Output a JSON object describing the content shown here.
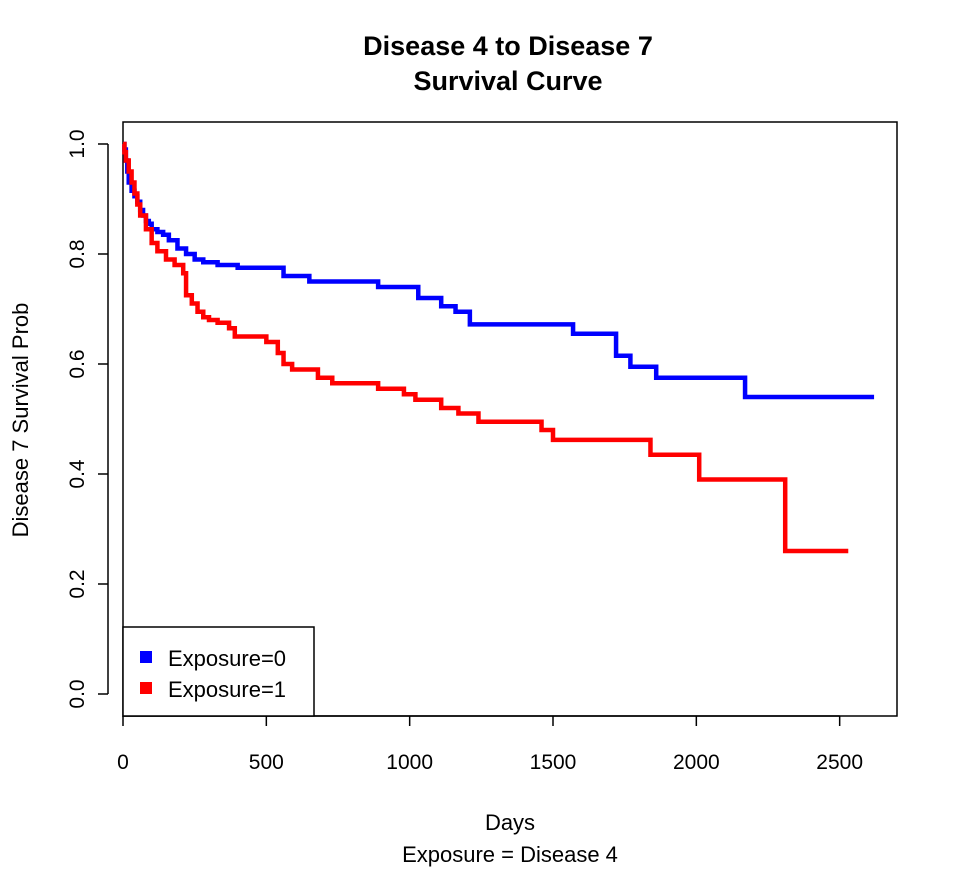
{
  "chart_data": {
    "type": "line",
    "step": true,
    "title": [
      "Disease 4 to Disease 7",
      "Survival Curve"
    ],
    "xlabel": "Days",
    "subtitle": "Exposure = Disease 4",
    "ylabel": "Disease 7 Survival Prob",
    "xlim": [
      0,
      2700
    ],
    "ylim": [
      -0.04,
      1.04
    ],
    "x_ticks": [
      0,
      500,
      1000,
      1500,
      2000,
      2500
    ],
    "y_ticks": [
      0.0,
      0.2,
      0.4,
      0.6,
      0.8,
      1.0
    ],
    "x_tick_labels": [
      "0",
      "500",
      "1000",
      "1500",
      "2000",
      "2500"
    ],
    "y_tick_labels": [
      "0.0",
      "0.2",
      "0.4",
      "0.6",
      "0.8",
      "1.0"
    ],
    "grid": false,
    "legend_position": "bottom-left",
    "series": [
      {
        "name": "Exposure=0",
        "color": "#0000ff",
        "x": [
          0,
          5,
          10,
          15,
          20,
          30,
          40,
          50,
          60,
          70,
          80,
          90,
          100,
          120,
          140,
          160,
          190,
          220,
          250,
          280,
          330,
          400,
          560,
          650,
          890,
          1030,
          1110,
          1160,
          1210,
          1570,
          1720,
          1770,
          1860,
          2170,
          2620
        ],
        "y": [
          1.0,
          0.99,
          0.97,
          0.95,
          0.93,
          0.915,
          0.905,
          0.895,
          0.88,
          0.87,
          0.86,
          0.855,
          0.845,
          0.84,
          0.835,
          0.825,
          0.81,
          0.8,
          0.79,
          0.785,
          0.78,
          0.775,
          0.76,
          0.75,
          0.74,
          0.72,
          0.705,
          0.695,
          0.672,
          0.655,
          0.615,
          0.595,
          0.575,
          0.54,
          0.54
        ]
      },
      {
        "name": "Exposure=1",
        "color": "#ff0000",
        "x": [
          0,
          5,
          10,
          20,
          30,
          40,
          50,
          60,
          80,
          100,
          120,
          150,
          180,
          210,
          220,
          240,
          260,
          280,
          300,
          330,
          370,
          390,
          500,
          540,
          560,
          590,
          680,
          730,
          890,
          980,
          1020,
          1110,
          1170,
          1240,
          1460,
          1500,
          1840,
          2010,
          2310,
          2530
        ],
        "y": [
          1.0,
          0.985,
          0.97,
          0.95,
          0.93,
          0.91,
          0.89,
          0.87,
          0.845,
          0.82,
          0.805,
          0.79,
          0.78,
          0.765,
          0.725,
          0.71,
          0.695,
          0.685,
          0.68,
          0.675,
          0.665,
          0.65,
          0.64,
          0.62,
          0.6,
          0.59,
          0.575,
          0.565,
          0.555,
          0.545,
          0.535,
          0.52,
          0.51,
          0.495,
          0.48,
          0.462,
          0.435,
          0.39,
          0.26,
          0.26
        ]
      }
    ]
  }
}
